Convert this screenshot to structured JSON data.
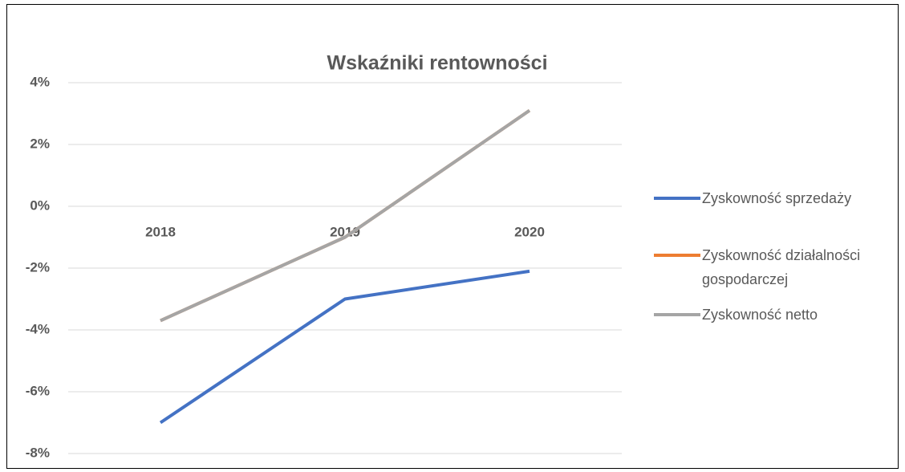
{
  "chart_data": {
    "type": "line",
    "title": "Wskaźniki rentowności",
    "categories": [
      "2018",
      "2019",
      "2020"
    ],
    "series": [
      {
        "name": "Zyskowność sprzedaży",
        "color": "#4472c4",
        "values": [
          -7.0,
          -3.0,
          -2.1
        ]
      },
      {
        "name": "Zyskowność działalności gospodarczej",
        "color": "#ed7d31",
        "values": [
          -3.7,
          -1.0,
          3.1
        ]
      },
      {
        "name": "Zyskowność netto",
        "color": "#a5a5a5",
        "values": [
          -3.7,
          -1.0,
          3.1
        ]
      }
    ],
    "ylim": [
      -8,
      4
    ],
    "yticks": [
      {
        "value": -8,
        "label": "-8%"
      },
      {
        "value": -6,
        "label": "-6%"
      },
      {
        "value": -4,
        "label": "-4%"
      },
      {
        "value": -2,
        "label": "-2%"
      },
      {
        "value": 0,
        "label": "0%"
      },
      {
        "value": 2,
        "label": "2%"
      },
      {
        "value": 4,
        "label": "4%"
      }
    ],
    "grid": true,
    "legend": "right"
  }
}
